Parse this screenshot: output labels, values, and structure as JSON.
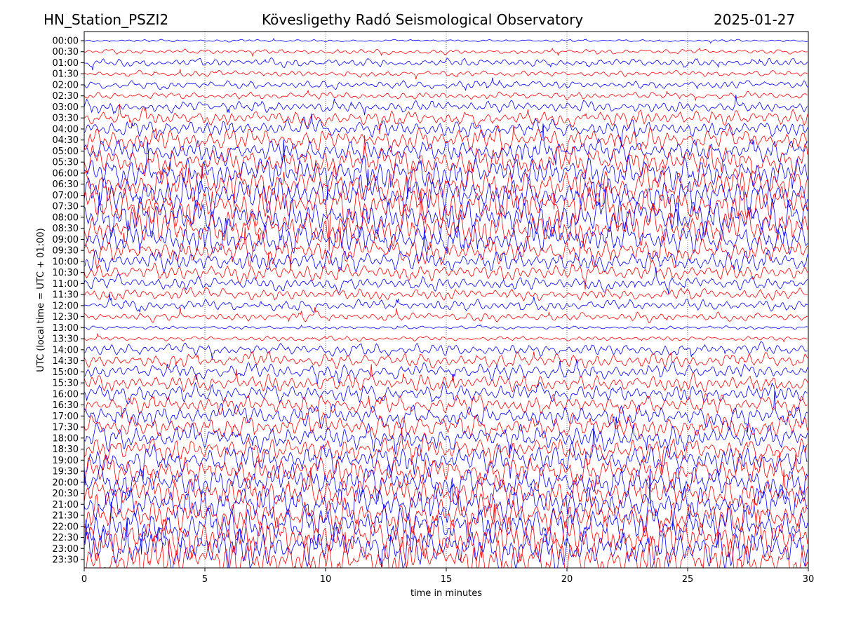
{
  "chart_data": {
    "type": "line",
    "title_left": "HN_Station_PSZI2",
    "title": "Kövesligethy Radó Seismological Observatory",
    "title_right": "2025-01-27",
    "xlabel": "time in minutes",
    "ylabel": "UTC (local time = UTC + 01:00)",
    "xlim": [
      0,
      30
    ],
    "xticks": [
      "0",
      "5",
      "10",
      "15",
      "20",
      "25",
      "30"
    ],
    "xtick_values": [
      0,
      5,
      10,
      15,
      20,
      25,
      30
    ],
    "grid": "vertical dotted at each x tick",
    "row_labels": [
      "00:00",
      "00:30",
      "01:00",
      "01:30",
      "02:00",
      "02:30",
      "03:00",
      "03:30",
      "04:00",
      "04:30",
      "05:00",
      "05:30",
      "06:00",
      "06:30",
      "07:00",
      "07:30",
      "08:00",
      "08:30",
      "09:00",
      "09:30",
      "10:00",
      "10:30",
      "11:00",
      "11:30",
      "12:00",
      "12:30",
      "13:00",
      "13:30",
      "14:00",
      "14:30",
      "15:00",
      "15:30",
      "16:00",
      "16:30",
      "17:00",
      "17:30",
      "18:00",
      "18:30",
      "19:00",
      "19:30",
      "20:00",
      "20:30",
      "21:00",
      "21:30",
      "22:00",
      "22:30",
      "23:00",
      "23:30"
    ],
    "series_colors": [
      "#0000ff",
      "#ff0000"
    ],
    "relative_amplitude_per_row": [
      0.2,
      0.4,
      0.7,
      0.5,
      0.7,
      0.6,
      1.0,
      1.3,
      1.5,
      1.8,
      2.0,
      2.4,
      2.8,
      3.0,
      3.0,
      3.2,
      3.2,
      3.0,
      2.6,
      2.2,
      1.8,
      1.4,
      1.2,
      1.0,
      0.9,
      0.7,
      0.3,
      0.4,
      1.0,
      1.2,
      1.3,
      1.4,
      1.5,
      1.6,
      1.8,
      2.0,
      2.0,
      2.2,
      2.4,
      2.4,
      2.6,
      2.6,
      2.8,
      3.0,
      3.2,
      3.4,
      3.4,
      3.4
    ]
  }
}
